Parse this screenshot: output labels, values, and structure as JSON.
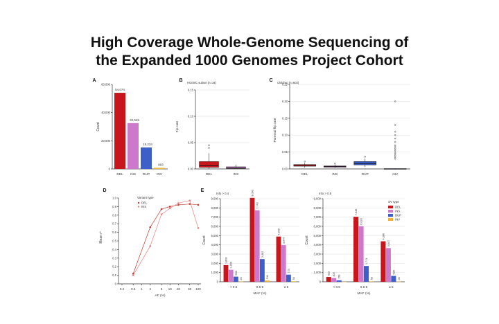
{
  "title_lines": [
    "High Coverage Whole-Genome Sequencing of",
    "the Expanded 1000 Genomes Project Cohort"
  ],
  "colors": {
    "DEL": "#c8171c",
    "INS": "#cc79cc",
    "DUP": "#3c5fc8",
    "INV": "#f0b43c",
    "axis": "#333333",
    "grid": "#dddddd"
  },
  "chart_data": [
    {
      "panel": "A",
      "type": "bar",
      "categories": [
        "DEL",
        "INS",
        "DUP",
        "INV"
      ],
      "values": [
        54074,
        32549,
        15234,
        803
      ],
      "value_labels": [
        "54,074",
        "32,549",
        "15,234",
        "803"
      ],
      "ylabel": "Count",
      "ylim": [
        0,
        60000
      ],
      "yticks": [
        0,
        20000,
        40000,
        60000
      ],
      "ytick_labels": [
        "0",
        "20,000",
        "40,000",
        "60,000"
      ]
    },
    {
      "panel": "B",
      "type": "box",
      "subtitle": "HG00/C subset (n=34)",
      "categories": [
        "DEL",
        "INS"
      ],
      "ylabel": "Fip rate",
      "ylim": [
        0,
        0.15
      ],
      "yticks": [
        0,
        0.05,
        0.1,
        0.15
      ],
      "ytick_labels": [
        "0.00",
        "0.05",
        "0.10",
        "0.15"
      ],
      "boxes": [
        {
          "q1": 0.003,
          "median": 0.006,
          "q3": 0.014,
          "whisker_low": 0.0,
          "whisker_high": 0.03,
          "outliers": [
            0.04,
            0.045
          ]
        },
        {
          "q1": 0.001,
          "median": 0.002,
          "q3": 0.004,
          "whisker_low": 0.0,
          "whisker_high": 0.008,
          "outliers": []
        }
      ]
    },
    {
      "panel": "C",
      "type": "box",
      "subtitle": "Children (n=602)",
      "categories": [
        "DEL",
        "INS",
        "DUP",
        "INV"
      ],
      "ylabel": "Parental flip rate",
      "ylim": [
        0,
        0.25
      ],
      "yticks": [
        0,
        0.05,
        0.1,
        0.15,
        0.2,
        0.25
      ],
      "ytick_labels": [
        "0.00",
        "0.05",
        "0.10",
        "0.15",
        "0.20",
        "0.25"
      ],
      "boxes": [
        {
          "q1": 0.008,
          "median": 0.01,
          "q3": 0.013,
          "whisker_low": 0.004,
          "whisker_high": 0.018,
          "outliers": [
            0.022
          ]
        },
        {
          "q1": 0.005,
          "median": 0.007,
          "q3": 0.009,
          "whisker_low": 0.002,
          "whisker_high": 0.013,
          "outliers": [
            0.016
          ]
        },
        {
          "q1": 0.012,
          "median": 0.016,
          "q3": 0.022,
          "whisker_low": 0.006,
          "whisker_high": 0.03,
          "outliers": [
            0.036
          ]
        },
        {
          "q1": 0.0,
          "median": 0.0,
          "q3": 0.001,
          "whisker_low": 0.0,
          "whisker_high": 0.002,
          "outliers": [
            0.03,
            0.035,
            0.04,
            0.045,
            0.05,
            0.055,
            0.06,
            0.065,
            0.07,
            0.08,
            0.09,
            0.1,
            0.11,
            0.13,
            0.2
          ]
        }
      ]
    },
    {
      "panel": "D",
      "type": "line",
      "legend_title": "Variant type",
      "x": [
        0.5,
        2,
        5,
        10,
        20,
        50,
        100
      ],
      "xlabel": "AF (%)",
      "xtick_labels": [
        "0.2",
        "0.5",
        "1",
        "2",
        "5",
        "10",
        "20",
        "50",
        "100"
      ],
      "xticks": [
        0.2,
        0.5,
        1,
        2,
        5,
        10,
        20,
        50,
        100
      ],
      "ylabel": "Mean r²",
      "ylim": [
        0,
        1.0
      ],
      "yticks": [
        0,
        0.1,
        0.2,
        0.3,
        0.4,
        0.5,
        0.6,
        0.7,
        0.8,
        0.9,
        1.0
      ],
      "ytick_labels": [
        "0",
        "0.1",
        "0.2",
        "0.3",
        "0.4",
        "0.5",
        "0.6",
        "0.7",
        "0.8",
        "0.9",
        "1.0"
      ],
      "series": [
        {
          "name": "DEL",
          "values": [
            0.12,
            0.66,
            0.87,
            0.9,
            0.92,
            0.93,
            0.92
          ]
        },
        {
          "name": "INS",
          "values": [
            0.1,
            0.44,
            0.81,
            0.88,
            0.94,
            0.97,
            0.65
          ]
        }
      ]
    },
    {
      "panel": "E",
      "type": "bar",
      "subtitle": "Info > 0.4",
      "categories": [
        "< 0.5",
        "0.5-5",
        "≥ 5"
      ],
      "xlabel": "MAF (%)",
      "ylabel": "Count",
      "ylim": [
        0,
        9000
      ],
      "yticks": [
        0,
        1000,
        2000,
        3000,
        4000,
        5000,
        6000,
        7000,
        8000,
        9000
      ],
      "ytick_labels": [
        "0",
        "1,000",
        "2,000",
        "3,000",
        "4,000",
        "5,000",
        "6,000",
        "7,000",
        "8,000",
        "9,000"
      ],
      "series": [
        {
          "name": "DEL",
          "values": [
            1803,
            9090,
            4900
          ],
          "labels": [
            "1,803",
            "9,090",
            "4,900"
          ]
        },
        {
          "name": "INS",
          "values": [
            1300,
            7743,
            3970
          ],
          "labels": [
            "1,300",
            "7,743",
            "3,970"
          ]
        },
        {
          "name": "DUP",
          "values": [
            556,
            2462,
            775
          ],
          "labels": [
            "556",
            "2,462",
            "775"
          ]
        },
        {
          "name": "INV",
          "values": [
            25,
            134,
            54
          ],
          "labels": [
            "25",
            "134",
            "54"
          ]
        }
      ]
    },
    {
      "panel": "E2",
      "type": "bar",
      "subtitle": "Info > 0.8",
      "legend_title": "SV type",
      "legend": [
        "DEL",
        "INS",
        "DUP",
        "INV"
      ],
      "categories": [
        "< 0.5",
        "0.5-5",
        "≥ 5"
      ],
      "xlabel": "MAF (%)",
      "ylabel": "Count",
      "ylim": [
        0,
        9000
      ],
      "yticks": [
        0,
        1000,
        2000,
        3000,
        4000,
        5000,
        6000,
        7000,
        8000,
        9000
      ],
      "ytick_labels": [
        "0",
        "1,000",
        "2,000",
        "3,000",
        "4,000",
        "5,000",
        "6,000",
        "7,000",
        "8,000",
        "9,000"
      ],
      "series": [
        {
          "name": "DEL",
          "values": [
            522,
            7038,
            4386
          ],
          "labels": [
            "522",
            "7,038",
            "4,386"
          ]
        },
        {
          "name": "INS",
          "values": [
            400,
            6020,
            3647
          ],
          "labels": [
            "400",
            "6,020",
            "3,647"
          ]
        },
        {
          "name": "DUP",
          "values": [
            158,
            1713,
            636
          ],
          "labels": [
            "158",
            "1,713",
            "636"
          ]
        },
        {
          "name": "INV",
          "values": [
            8,
            53,
            26
          ],
          "labels": [
            "",
            "53",
            "26"
          ]
        }
      ]
    }
  ]
}
